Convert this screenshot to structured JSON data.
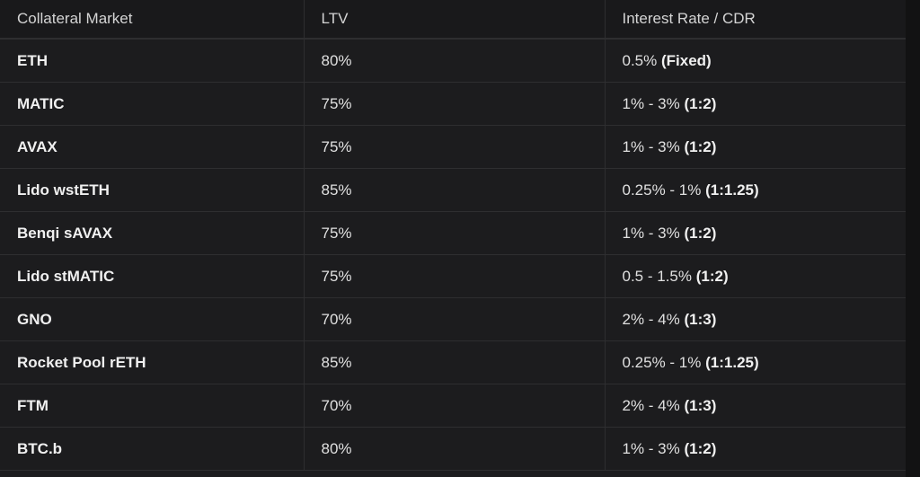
{
  "table": {
    "header": [
      "Collateral Market",
      "LTV",
      "Interest Rate / CDR"
    ],
    "rows": [
      [
        "ETH",
        "80%",
        "0.5%",
        "(Fixed)"
      ],
      [
        "MATIC",
        "75%",
        "1% - 3%",
        "(1:2)"
      ],
      [
        "AVAX",
        "75%",
        "1% - 3%",
        "(1:2)"
      ],
      [
        "Lido wstETH",
        "85%",
        "0.25% - 1%",
        "(1:1.25)"
      ],
      [
        "Benqi sAVAX",
        "75%",
        "1% - 3%",
        "(1:2)"
      ],
      [
        "Lido stMATIC",
        "75%",
        "0.5 - 1.5%",
        "(1:2)"
      ],
      [
        "GNO",
        "70%",
        "2% - 4%",
        "(1:3)"
      ],
      [
        "Rocket Pool rETH",
        "85%",
        "0.25% - 1%",
        "(1:1.25)"
      ],
      [
        "FTM",
        "70%",
        "2% - 4%",
        "(1:3)"
      ],
      [
        "BTC.b",
        "80%",
        "1% - 3%",
        "(1:2)"
      ]
    ]
  }
}
